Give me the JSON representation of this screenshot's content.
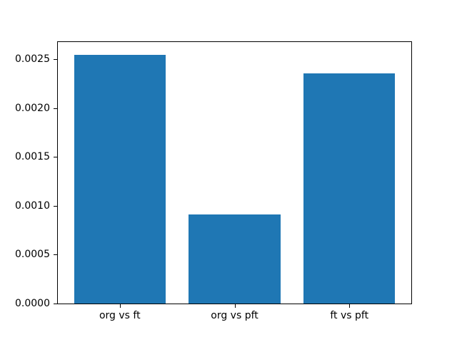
{
  "figure": {
    "background": "#ffffff",
    "frame_color": "#000000",
    "title": ""
  },
  "chart_data": {
    "type": "bar",
    "title": "",
    "xlabel": "",
    "ylabel": "",
    "categories": [
      "org vs ft",
      "org vs pft",
      "ft vs pft"
    ],
    "values": [
      0.00255,
      0.00091,
      0.00236
    ],
    "bar_color": "#1f77b4",
    "bar_width": 0.8,
    "xlim": [
      -0.54,
      2.54
    ],
    "ylim": [
      0,
      0.002678
    ],
    "yticks": [
      0.0,
      0.0005,
      0.001,
      0.0015,
      0.002,
      0.0025
    ],
    "ytick_labels": [
      "0.0000",
      "0.0005",
      "0.0010",
      "0.0015",
      "0.0020",
      "0.0025"
    ],
    "grid": false,
    "legend": null
  }
}
